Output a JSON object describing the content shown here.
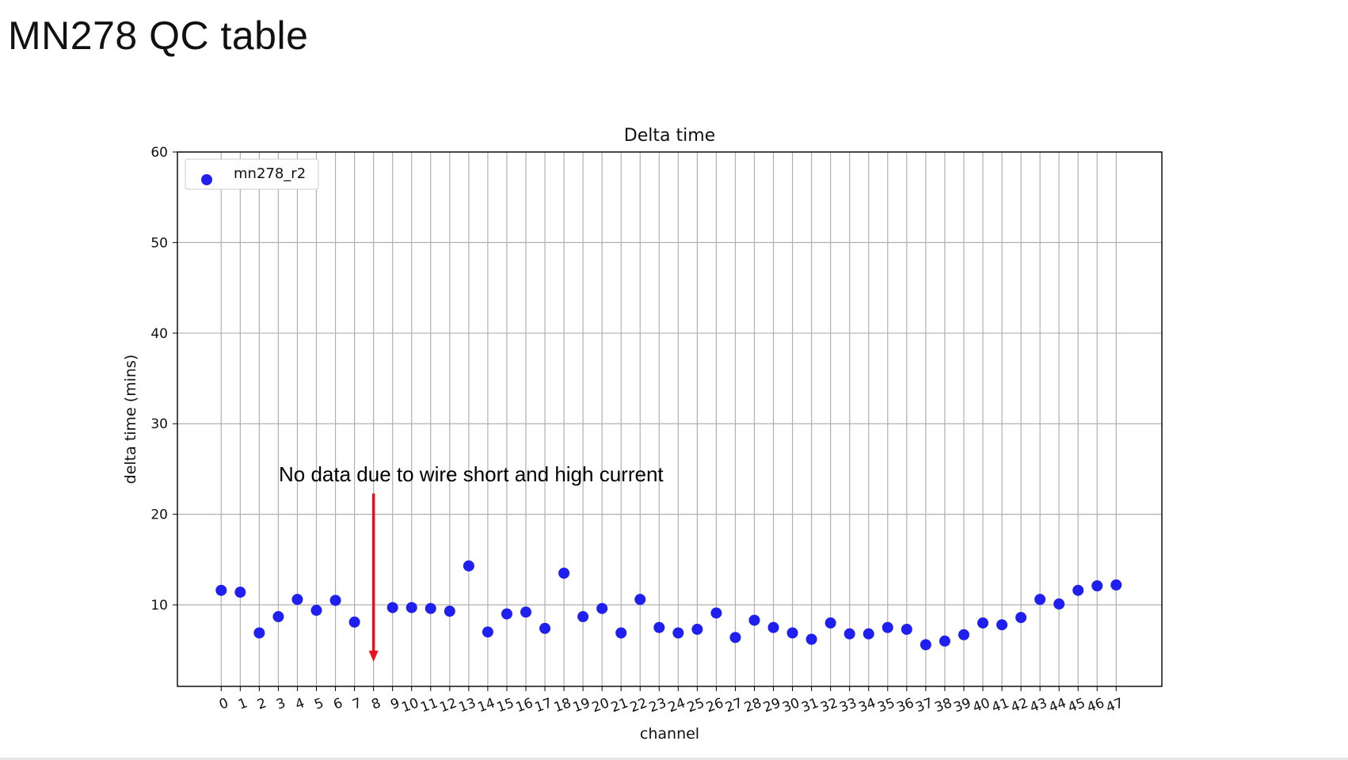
{
  "slide": {
    "title": "MN278 QC table"
  },
  "chart_data": {
    "type": "scatter",
    "title": "Delta time",
    "xlabel": "channel",
    "ylabel": "delta time (mins)",
    "x": [
      0,
      1,
      2,
      3,
      4,
      5,
      6,
      7,
      8,
      9,
      10,
      11,
      12,
      13,
      14,
      15,
      16,
      17,
      18,
      19,
      20,
      21,
      22,
      23,
      24,
      25,
      26,
      27,
      28,
      29,
      30,
      31,
      32,
      33,
      34,
      35,
      36,
      37,
      38,
      39,
      40,
      41,
      42,
      43,
      44,
      45,
      46,
      47
    ],
    "x_ticks": [
      "0",
      "1",
      "2",
      "3",
      "4",
      "5",
      "6",
      "7",
      "8",
      "9",
      "10",
      "11",
      "12",
      "13",
      "14",
      "15",
      "16",
      "17",
      "18",
      "19",
      "20",
      "21",
      "22",
      "23",
      "24",
      "25",
      "26",
      "27",
      "28",
      "29",
      "30",
      "31",
      "32",
      "33",
      "34",
      "35",
      "36",
      "37",
      "38",
      "39",
      "40",
      "41",
      "42",
      "43",
      "44",
      "45",
      "46",
      "47"
    ],
    "y_ticks": [
      "10",
      "20",
      "30",
      "40",
      "50",
      "60"
    ],
    "xlim": [
      -2.3,
      49.4
    ],
    "ylim": [
      1,
      60
    ],
    "grid": true,
    "legend_position": "top-left",
    "series": [
      {
        "name": "mn278_r2",
        "color": "#1f1fef",
        "points": [
          [
            0,
            11.6
          ],
          [
            1,
            11.4
          ],
          [
            2,
            6.9
          ],
          [
            3,
            8.7
          ],
          [
            4,
            10.6
          ],
          [
            5,
            9.4
          ],
          [
            6,
            10.5
          ],
          [
            7,
            8.1
          ],
          [
            9,
            9.7
          ],
          [
            10,
            9.7
          ],
          [
            11,
            9.6
          ],
          [
            12,
            9.3
          ],
          [
            13,
            14.3
          ],
          [
            14,
            7.0
          ],
          [
            15,
            9.0
          ],
          [
            16,
            9.2
          ],
          [
            17,
            7.4
          ],
          [
            18,
            13.5
          ],
          [
            19,
            8.7
          ],
          [
            20,
            9.6
          ],
          [
            21,
            6.9
          ],
          [
            22,
            10.6
          ],
          [
            23,
            7.5
          ],
          [
            24,
            6.9
          ],
          [
            25,
            7.3
          ],
          [
            26,
            9.1
          ],
          [
            27,
            6.4
          ],
          [
            28,
            8.3
          ],
          [
            29,
            7.5
          ],
          [
            30,
            6.9
          ],
          [
            31,
            6.2
          ],
          [
            32,
            8.0
          ],
          [
            33,
            6.8
          ],
          [
            34,
            6.8
          ],
          [
            35,
            7.5
          ],
          [
            36,
            7.3
          ],
          [
            37,
            5.6
          ],
          [
            38,
            6.0
          ],
          [
            39,
            6.7
          ],
          [
            40,
            8.0
          ],
          [
            41,
            7.8
          ],
          [
            42,
            8.6
          ],
          [
            43,
            10.6
          ],
          [
            44,
            10.1
          ],
          [
            45,
            11.6
          ],
          [
            46,
            12.1
          ],
          [
            47,
            12.2
          ]
        ]
      }
    ],
    "annotation": {
      "text": "No data due to wire short and high current",
      "arrow_x": 8,
      "arrow_y_from": 22.3,
      "arrow_y_to": 3.9,
      "color": "#e8101c"
    }
  }
}
